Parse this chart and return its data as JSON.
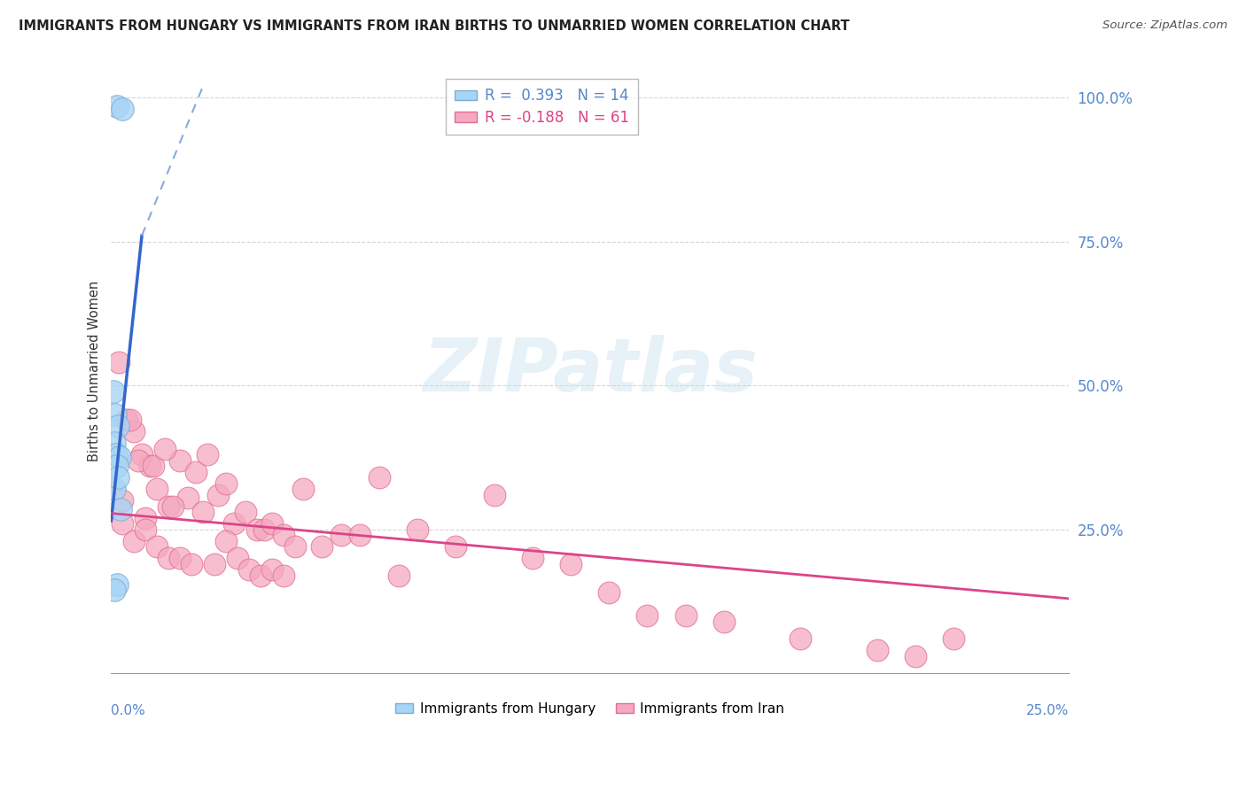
{
  "title": "IMMIGRANTS FROM HUNGARY VS IMMIGRANTS FROM IRAN BIRTHS TO UNMARRIED WOMEN CORRELATION CHART",
  "source": "Source: ZipAtlas.com",
  "ylabel": "Births to Unmarried Women",
  "legend_blue": "R =  0.393   N = 14",
  "legend_pink": "R = -0.188   N = 61",
  "watermark": "ZIPatlas",
  "blue_dot_color": "#A8D4F5",
  "blue_edge_color": "#7BAFD4",
  "pink_dot_color": "#F5A8C0",
  "pink_edge_color": "#E07090",
  "trend_blue_color": "#3366CC",
  "trend_pink_color": "#DD4488",
  "trend_blue_dash_color": "#88AADD",
  "ytick_color": "#5588CC",
  "xtick_color": "#5588CC",
  "hungary_x": [
    0.0015,
    0.003,
    0.0005,
    0.001,
    0.0018,
    0.0008,
    0.0012,
    0.0022,
    0.0016,
    0.0008,
    0.0025,
    0.0015,
    0.0008,
    0.0018
  ],
  "hungary_y": [
    0.985,
    0.98,
    0.49,
    0.45,
    0.43,
    0.4,
    0.38,
    0.375,
    0.36,
    0.32,
    0.285,
    0.155,
    0.145,
    0.34
  ],
  "iran_x": [
    0.002,
    0.004,
    0.006,
    0.008,
    0.01,
    0.003,
    0.005,
    0.007,
    0.009,
    0.011,
    0.012,
    0.015,
    0.018,
    0.02,
    0.014,
    0.016,
    0.022,
    0.025,
    0.028,
    0.03,
    0.032,
    0.035,
    0.038,
    0.04,
    0.042,
    0.045,
    0.048,
    0.05,
    0.055,
    0.06,
    0.003,
    0.006,
    0.009,
    0.012,
    0.015,
    0.018,
    0.021,
    0.024,
    0.027,
    0.03,
    0.033,
    0.036,
    0.039,
    0.042,
    0.045,
    0.065,
    0.07,
    0.075,
    0.08,
    0.09,
    0.1,
    0.11,
    0.12,
    0.13,
    0.14,
    0.15,
    0.16,
    0.18,
    0.2,
    0.21,
    0.22
  ],
  "iran_y": [
    0.54,
    0.44,
    0.42,
    0.38,
    0.36,
    0.3,
    0.44,
    0.37,
    0.27,
    0.36,
    0.32,
    0.29,
    0.37,
    0.305,
    0.39,
    0.29,
    0.35,
    0.38,
    0.31,
    0.33,
    0.26,
    0.28,
    0.25,
    0.25,
    0.26,
    0.24,
    0.22,
    0.32,
    0.22,
    0.24,
    0.26,
    0.23,
    0.25,
    0.22,
    0.2,
    0.2,
    0.19,
    0.28,
    0.19,
    0.23,
    0.2,
    0.18,
    0.17,
    0.18,
    0.17,
    0.24,
    0.34,
    0.17,
    0.25,
    0.22,
    0.31,
    0.2,
    0.19,
    0.14,
    0.1,
    0.1,
    0.09,
    0.06,
    0.04,
    0.03,
    0.06
  ],
  "xlim": [
    0,
    0.25
  ],
  "ylim": [
    0,
    1.05
  ],
  "trend_blue_x0": 0.0,
  "trend_blue_y0": 0.265,
  "trend_blue_x1": 0.008,
  "trend_blue_y1": 0.76,
  "trend_blue_dash_x0": 0.008,
  "trend_blue_dash_y0": 0.76,
  "trend_blue_dash_x1": 0.024,
  "trend_blue_dash_y1": 1.02,
  "trend_pink_x0": 0.0,
  "trend_pink_y0": 0.278,
  "trend_pink_x1": 0.25,
  "trend_pink_y1": 0.13
}
